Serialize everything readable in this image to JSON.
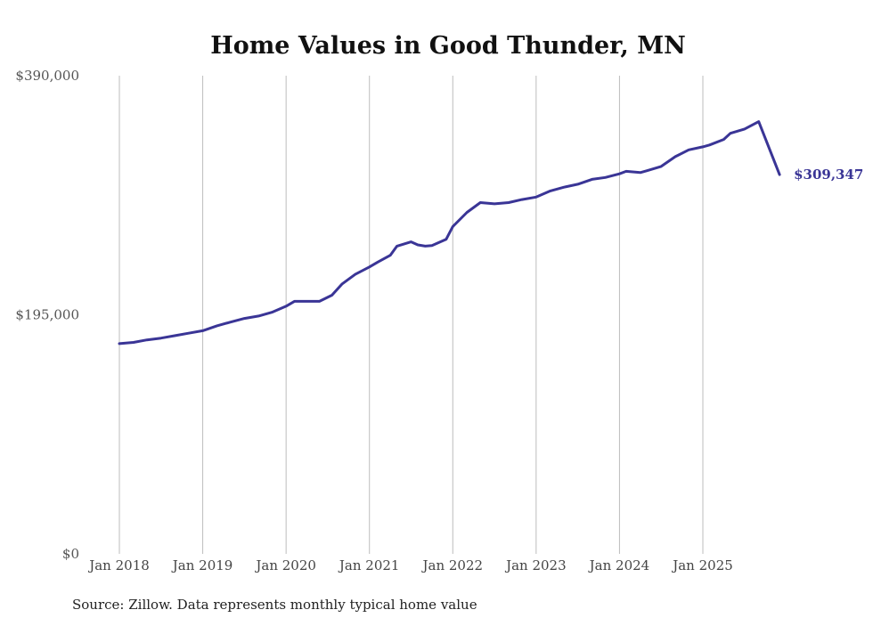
{
  "chart_data": {
    "type": "line",
    "title": "Home Values in Good Thunder, MN",
    "source": "Source: Zillow. Data represents monthly typical home value",
    "xlabel": "",
    "ylabel": "",
    "ylim": [
      0,
      390000
    ],
    "yticks": [
      {
        "value": 0,
        "label": "$0"
      },
      {
        "value": 195000,
        "label": "$195,000"
      },
      {
        "value": 390000,
        "label": "$390,000"
      }
    ],
    "xticks": [
      {
        "value": 2018.0,
        "label": "Jan 2018"
      },
      {
        "value": 2019.0,
        "label": "Jan 2019"
      },
      {
        "value": 2020.0,
        "label": "Jan 2020"
      },
      {
        "value": 2021.0,
        "label": "Jan 2021"
      },
      {
        "value": 2022.0,
        "label": "Jan 2022"
      },
      {
        "value": 2023.0,
        "label": "Jan 2023"
      },
      {
        "value": 2024.0,
        "label": "Jan 2024"
      },
      {
        "value": 2025.0,
        "label": "Jan 2025"
      }
    ],
    "grid": "vertical",
    "line_color": "#3a3596",
    "end_label": "$309,347",
    "series": [
      {
        "name": "Typical home value",
        "x": [
          2018.0,
          2018.17,
          2018.33,
          2018.5,
          2018.67,
          2018.83,
          2019.0,
          2019.17,
          2019.33,
          2019.5,
          2019.67,
          2019.83,
          2020.0,
          2020.1,
          2020.25,
          2020.4,
          2020.55,
          2020.67,
          2020.83,
          2021.0,
          2021.1,
          2021.25,
          2021.33,
          2021.5,
          2021.58,
          2021.67,
          2021.75,
          2021.92,
          2022.0,
          2022.17,
          2022.33,
          2022.5,
          2022.67,
          2022.83,
          2023.0,
          2023.17,
          2023.33,
          2023.5,
          2023.67,
          2023.83,
          2024.0,
          2024.08,
          2024.25,
          2024.33,
          2024.5,
          2024.67,
          2024.83,
          2025.0,
          2025.08,
          2025.25,
          2025.33,
          2025.5,
          2025.67,
          2025.92
        ],
        "values": [
          171500,
          172500,
          174500,
          176000,
          178000,
          180000,
          182000,
          186000,
          189000,
          192000,
          194000,
          197000,
          202000,
          206000,
          206000,
          206000,
          211000,
          220000,
          228000,
          234000,
          238000,
          243500,
          251000,
          254500,
          252000,
          251000,
          251500,
          256500,
          267000,
          278500,
          286500,
          285500,
          286500,
          289000,
          291000,
          296000,
          299000,
          301500,
          305500,
          307000,
          310000,
          312000,
          311000,
          312500,
          316000,
          324000,
          329500,
          332000,
          333500,
          338000,
          343000,
          346500,
          352500,
          309347
        ]
      }
    ]
  }
}
